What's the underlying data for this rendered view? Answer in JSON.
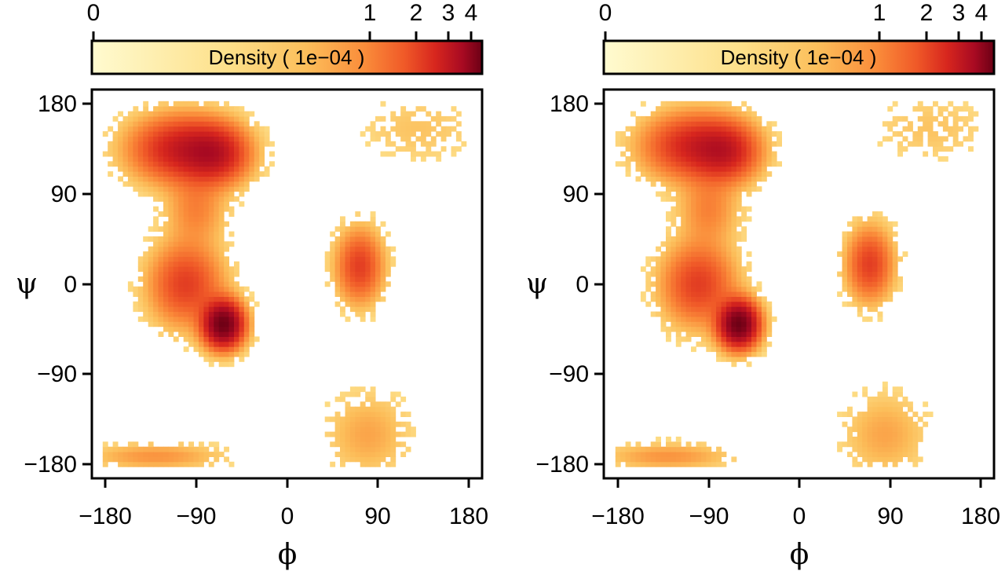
{
  "chart_data": [
    {
      "type": "heatmap",
      "panel": "left",
      "xlabel": "ϕ",
      "ylabel": "ψ",
      "xlim": [
        -180,
        180
      ],
      "ylim": [
        -180,
        180
      ],
      "xticks": [
        "−180",
        "−90",
        "0",
        "90",
        "180"
      ],
      "yticks": [
        "180",
        "90",
        "0",
        "−90",
        "−180"
      ],
      "colorbar": {
        "label": "Density ( 1e−04 )",
        "scale": "log-like",
        "ticks": [
          "0",
          "1",
          "2",
          "3",
          "4"
        ],
        "colors": [
          "#fffbd0",
          "#fde08a",
          "#fcbe5a",
          "#fa8c3a",
          "#f05a28",
          "#d7261e",
          "#a80a22",
          "#6b0015"
        ]
      },
      "clusters": [
        {
          "region": "beta",
          "phi": -105,
          "psi": 135,
          "spread_phi": 30,
          "spread_psi": 20,
          "peak_density": 1.8
        },
        {
          "region": "beta",
          "phi": -70,
          "psi": 130,
          "spread_phi": 20,
          "spread_psi": 18,
          "peak_density": 1.6
        },
        {
          "region": "alpha-R",
          "phi": -63,
          "psi": -40,
          "spread_phi": 12,
          "spread_psi": 14,
          "peak_density": 4.2
        },
        {
          "region": "alpha-R tail",
          "phi": -100,
          "psi": 0,
          "spread_phi": 22,
          "spread_psi": 25,
          "peak_density": 1.2
        },
        {
          "region": "bridge",
          "phi": -90,
          "psi": 75,
          "spread_phi": 18,
          "spread_psi": 22,
          "peak_density": 0.5
        },
        {
          "region": "alpha-L",
          "phi": 72,
          "psi": 18,
          "spread_phi": 14,
          "spread_psi": 22,
          "peak_density": 1.2
        },
        {
          "region": "lower band",
          "phi": -130,
          "psi": -172,
          "spread_phi": 40,
          "spread_psi": 8,
          "peak_density": 0.4
        },
        {
          "region": "lower right",
          "phi": 80,
          "psi": -150,
          "spread_phi": 25,
          "spread_psi": 25,
          "peak_density": 0.3
        },
        {
          "region": "upper right",
          "phi": 130,
          "psi": 155,
          "spread_phi": 35,
          "spread_psi": 20,
          "peak_density": 0.15
        }
      ]
    },
    {
      "type": "heatmap",
      "panel": "right",
      "xlabel": "ϕ",
      "ylabel": "ψ",
      "xlim": [
        -180,
        180
      ],
      "ylim": [
        -180,
        180
      ],
      "xticks": [
        "−180",
        "−90",
        "0",
        "90",
        "180"
      ],
      "yticks": [
        "180",
        "90",
        "0",
        "−90",
        "−180"
      ],
      "colorbar": {
        "label": "Density ( 1e−04 )",
        "scale": "log-like",
        "ticks": [
          "0",
          "1",
          "2",
          "3",
          "4"
        ],
        "colors": [
          "#fffbd0",
          "#fde08a",
          "#fcbe5a",
          "#fa8c3a",
          "#f05a28",
          "#d7261e",
          "#a80a22",
          "#6b0015"
        ]
      },
      "clusters": [
        {
          "region": "beta",
          "phi": -105,
          "psi": 138,
          "spread_phi": 30,
          "spread_psi": 20,
          "peak_density": 1.6
        },
        {
          "region": "beta",
          "phi": -72,
          "psi": 132,
          "spread_phi": 20,
          "spread_psi": 18,
          "peak_density": 1.4
        },
        {
          "region": "alpha-R",
          "phi": -60,
          "psi": -40,
          "spread_phi": 12,
          "spread_psi": 14,
          "peak_density": 4.2
        },
        {
          "region": "alpha-R tail",
          "phi": -100,
          "psi": 0,
          "spread_phi": 22,
          "spread_psi": 25,
          "peak_density": 1.2
        },
        {
          "region": "bridge",
          "phi": -90,
          "psi": 75,
          "spread_phi": 18,
          "spread_psi": 22,
          "peak_density": 0.5
        },
        {
          "region": "alpha-L",
          "phi": 70,
          "psi": 20,
          "spread_phi": 14,
          "spread_psi": 22,
          "peak_density": 1.2
        },
        {
          "region": "lower band",
          "phi": -130,
          "psi": -172,
          "spread_phi": 38,
          "spread_psi": 8,
          "peak_density": 0.4
        },
        {
          "region": "lower right",
          "phi": 85,
          "psi": -150,
          "spread_phi": 25,
          "spread_psi": 25,
          "peak_density": 0.3
        },
        {
          "region": "upper right",
          "phi": 130,
          "psi": 155,
          "spread_phi": 35,
          "spread_psi": 20,
          "peak_density": 0.15
        }
      ]
    }
  ]
}
